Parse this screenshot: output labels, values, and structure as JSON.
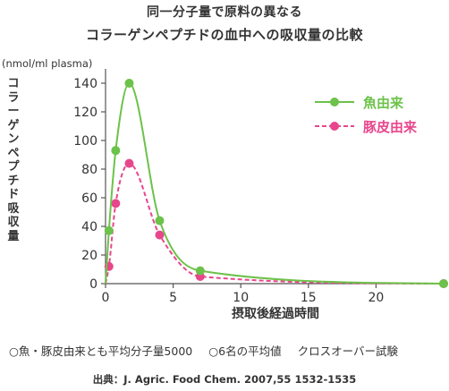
{
  "title_line1": "同一分子量で原料の異なる",
  "title_line2": "コラーゲンペプチドの血中への吸収量の比較",
  "note": {
    "items": [
      "○魚・豚皮由来とも平均分子量5000",
      "○6名の平均値",
      "クロスオーバー試験"
    ]
  },
  "source": "出典：J. Agric. Food Chem. 2007,55 1532-1535",
  "chart_data": {
    "type": "line",
    "title": "",
    "xlabel": "摂取後経過時間",
    "ylabel": "コラーゲンペプチド吸収量",
    "yunit": "(nmol/ml plasma)",
    "xlim": [
      0,
      25
    ],
    "ylim": [
      0,
      150
    ],
    "xticks": [
      0,
      5,
      10,
      15,
      20
    ],
    "yticks": [
      0,
      20,
      40,
      60,
      80,
      100,
      120,
      140
    ],
    "grid": false,
    "legend_position": "top-right",
    "series": [
      {
        "name": "魚由来",
        "color": "#6cc24a",
        "style": "solid",
        "points": [
          [
            0,
            0
          ],
          [
            0.25,
            37
          ],
          [
            0.75,
            93
          ],
          [
            1.75,
            140
          ],
          [
            4,
            44
          ],
          [
            7,
            9
          ],
          [
            25,
            0
          ]
        ]
      },
      {
        "name": "豚皮由来",
        "color": "#e8468c",
        "style": "dashed",
        "points": [
          [
            0,
            0
          ],
          [
            0.25,
            12
          ],
          [
            0.75,
            56
          ],
          [
            1.75,
            84
          ],
          [
            4,
            34
          ],
          [
            7,
            5
          ],
          [
            25,
            0
          ]
        ]
      }
    ]
  }
}
